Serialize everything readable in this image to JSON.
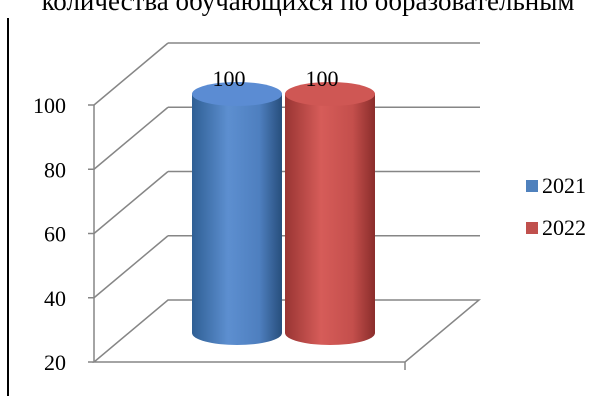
{
  "title": "количества обучающихся по образовательным",
  "chart_data": {
    "type": "bar",
    "style": "3d-cylinder",
    "categories": [
      ""
    ],
    "series": [
      {
        "name": "2021",
        "values": [
          100
        ],
        "color": "#4f81bd"
      },
      {
        "name": "2022",
        "values": [
          100
        ],
        "color": "#c0504d"
      }
    ],
    "data_labels": [
      "100",
      "100"
    ],
    "y_ticks": [
      "20",
      "40",
      "60",
      "80",
      "100"
    ],
    "ylim": [
      20,
      100
    ],
    "grid": true,
    "legend_position": "right"
  }
}
